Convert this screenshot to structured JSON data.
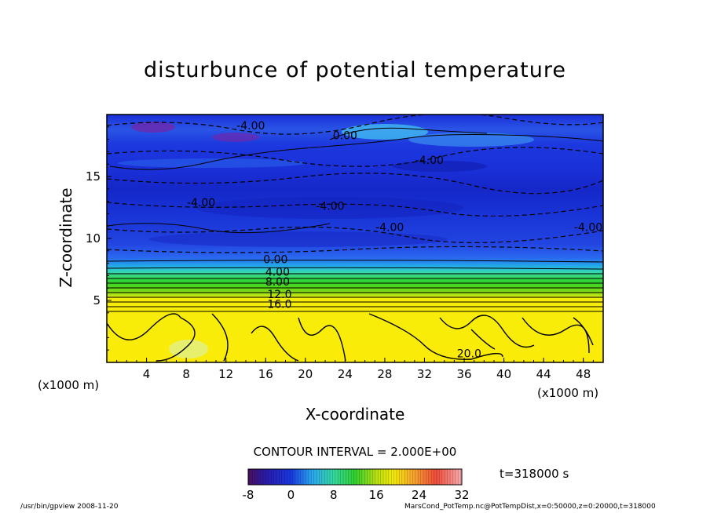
{
  "title": "disturbunce of potential temperature",
  "chart_data": {
    "type": "heatmap",
    "title": "disturbunce of potential temperature",
    "xlabel": "X-coordinate",
    "ylabel": "Z-coordinate",
    "x_unit_note": "(x1000 m)",
    "xlim": [
      0,
      50
    ],
    "ylim": [
      0,
      20
    ],
    "xticks": [
      "4",
      "8",
      "12",
      "16",
      "20",
      "24",
      "28",
      "32",
      "36",
      "40",
      "44",
      "48"
    ],
    "yticks": [
      "5",
      "10",
      "15"
    ],
    "colorbar_ticks": [
      "-8",
      "0",
      "8",
      "16",
      "24",
      "32"
    ],
    "colorbar_range": [
      -8,
      32
    ],
    "contour_interval": "CONTOUR INTERVAL = 2.000E+00",
    "contour_labels": [
      {
        "text": "-4.00",
        "x": 14.5,
        "z": 18.8
      },
      {
        "text": "0.00",
        "x": 24.0,
        "z": 18.0
      },
      {
        "text": "-4.00",
        "x": 32.5,
        "z": 16.0
      },
      {
        "text": "-4.00",
        "x": 9.5,
        "z": 12.6
      },
      {
        "text": "-4.00",
        "x": 22.5,
        "z": 12.3
      },
      {
        "text": "-4.00",
        "x": 28.5,
        "z": 10.6
      },
      {
        "text": "-4.00",
        "x": 48.5,
        "z": 10.6
      },
      {
        "text": "0.00",
        "x": 17.0,
        "z": 8.0
      },
      {
        "text": "4.00",
        "x": 17.2,
        "z": 7.0
      },
      {
        "text": "8.00",
        "x": 17.2,
        "z": 6.2
      },
      {
        "text": "12.0",
        "x": 17.4,
        "z": 5.2
      },
      {
        "text": "16.0",
        "x": 17.4,
        "z": 4.4
      },
      {
        "text": "20.0",
        "x": 36.5,
        "z": 0.4
      }
    ],
    "grid": false
  },
  "time_label": "t=318000 s",
  "footer_left": "/usr/bin/gpview   2008-11-20",
  "footer_right": "MarsCond_PotTemp.nc@PotTempDist,x=0:50000,z=0:20000,t=318000"
}
